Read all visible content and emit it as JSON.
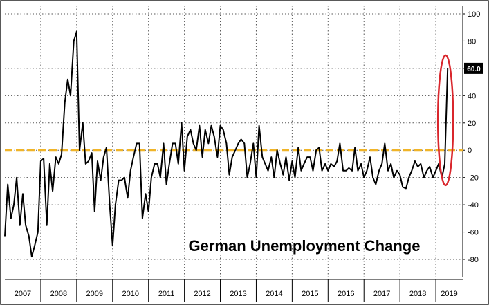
{
  "chart_data": {
    "type": "line",
    "title": "German Unemployment Change",
    "xlabel": "",
    "ylabel": "",
    "ylim": [
      -90,
      100
    ],
    "y_ticks": [
      100,
      80,
      60,
      40,
      20,
      0,
      -20,
      -40,
      -60,
      -80
    ],
    "x_range": [
      2007.0,
      2019.75
    ],
    "year_labels": [
      "2007",
      "2008",
      "2009",
      "2010",
      "2011",
      "2012",
      "2013",
      "2014",
      "2015",
      "2016",
      "2017",
      "2018",
      "2019"
    ],
    "grid": true,
    "zero_line": {
      "value": 0,
      "style": "dashed",
      "color": "#f0b428"
    },
    "highlight": {
      "shape": "ellipse",
      "color": "#d9262c",
      "around_x": 2019.33
    },
    "callout": {
      "label": "60.0",
      "value": 60.0
    },
    "series": [
      {
        "name": "",
        "color": "#000000",
        "x": [
          2007.0,
          2007.08,
          2007.17,
          2007.25,
          2007.33,
          2007.42,
          2007.5,
          2007.58,
          2007.67,
          2007.75,
          2007.83,
          2007.92,
          2008.0,
          2008.08,
          2008.17,
          2008.25,
          2008.33,
          2008.42,
          2008.5,
          2008.58,
          2008.67,
          2008.75,
          2008.83,
          2008.92,
          2009.0,
          2009.08,
          2009.17,
          2009.25,
          2009.33,
          2009.42,
          2009.5,
          2009.58,
          2009.67,
          2009.75,
          2009.83,
          2009.92,
          2010.0,
          2010.08,
          2010.17,
          2010.25,
          2010.33,
          2010.42,
          2010.5,
          2010.58,
          2010.67,
          2010.75,
          2010.83,
          2010.92,
          2011.0,
          2011.08,
          2011.17,
          2011.25,
          2011.33,
          2011.42,
          2011.5,
          2011.58,
          2011.67,
          2011.75,
          2011.83,
          2011.92,
          2012.0,
          2012.08,
          2012.17,
          2012.25,
          2012.33,
          2012.42,
          2012.5,
          2012.58,
          2012.67,
          2012.75,
          2012.83,
          2012.92,
          2013.0,
          2013.08,
          2013.17,
          2013.25,
          2013.33,
          2013.42,
          2013.5,
          2013.58,
          2013.67,
          2013.75,
          2013.83,
          2013.92,
          2014.0,
          2014.08,
          2014.17,
          2014.25,
          2014.33,
          2014.42,
          2014.5,
          2014.58,
          2014.67,
          2014.75,
          2014.83,
          2014.92,
          2015.0,
          2015.08,
          2015.17,
          2015.25,
          2015.33,
          2015.42,
          2015.5,
          2015.58,
          2015.67,
          2015.75,
          2015.83,
          2015.92,
          2016.0,
          2016.08,
          2016.17,
          2016.25,
          2016.33,
          2016.42,
          2016.5,
          2016.58,
          2016.67,
          2016.75,
          2016.83,
          2016.92,
          2017.0,
          2017.08,
          2017.17,
          2017.25,
          2017.33,
          2017.42,
          2017.5,
          2017.58,
          2017.67,
          2017.75,
          2017.83,
          2017.92,
          2018.0,
          2018.08,
          2018.17,
          2018.25,
          2018.33,
          2018.42,
          2018.5,
          2018.58,
          2018.67,
          2018.75,
          2018.83,
          2018.92,
          2019.0,
          2019.08,
          2019.17,
          2019.25,
          2019.33
        ],
        "values": [
          -63,
          -25,
          -50,
          -40,
          -20,
          -55,
          -32,
          -55,
          -63,
          -78,
          -70,
          -60,
          -8,
          -6,
          -55,
          -10,
          -30,
          -5,
          -10,
          -3,
          35,
          52,
          40,
          80,
          87,
          0,
          20,
          -10,
          -8,
          -2,
          -45,
          -8,
          -22,
          -5,
          2,
          -40,
          -70,
          -40,
          -22,
          -22,
          -20,
          -35,
          -15,
          -5,
          5,
          5,
          -50,
          -32,
          -45,
          -20,
          -10,
          -10,
          -20,
          5,
          -25,
          -10,
          5,
          5,
          -10,
          20,
          -15,
          10,
          15,
          5,
          0,
          18,
          -5,
          15,
          5,
          18,
          10,
          -5,
          18,
          15,
          5,
          -18,
          -5,
          0,
          5,
          8,
          5,
          -20,
          -10,
          5,
          -20,
          18,
          -5,
          -10,
          -15,
          -5,
          -20,
          0,
          -10,
          -18,
          -5,
          -22,
          -8,
          -20,
          2,
          -15,
          -10,
          -5,
          -5,
          -15,
          0,
          2,
          -15,
          -10,
          -15,
          -10,
          -12,
          -8,
          5,
          -15,
          -15,
          -13,
          -15,
          2,
          -15,
          -10,
          -20,
          -15,
          -5,
          -20,
          -25,
          -15,
          -10,
          5,
          -15,
          -10,
          -20,
          -15,
          -18,
          -27,
          -28,
          -20,
          -15,
          -8,
          -12,
          -10,
          -20,
          -15,
          -12,
          -20,
          -15,
          -10,
          -20,
          -10,
          60
        ]
      }
    ]
  }
}
